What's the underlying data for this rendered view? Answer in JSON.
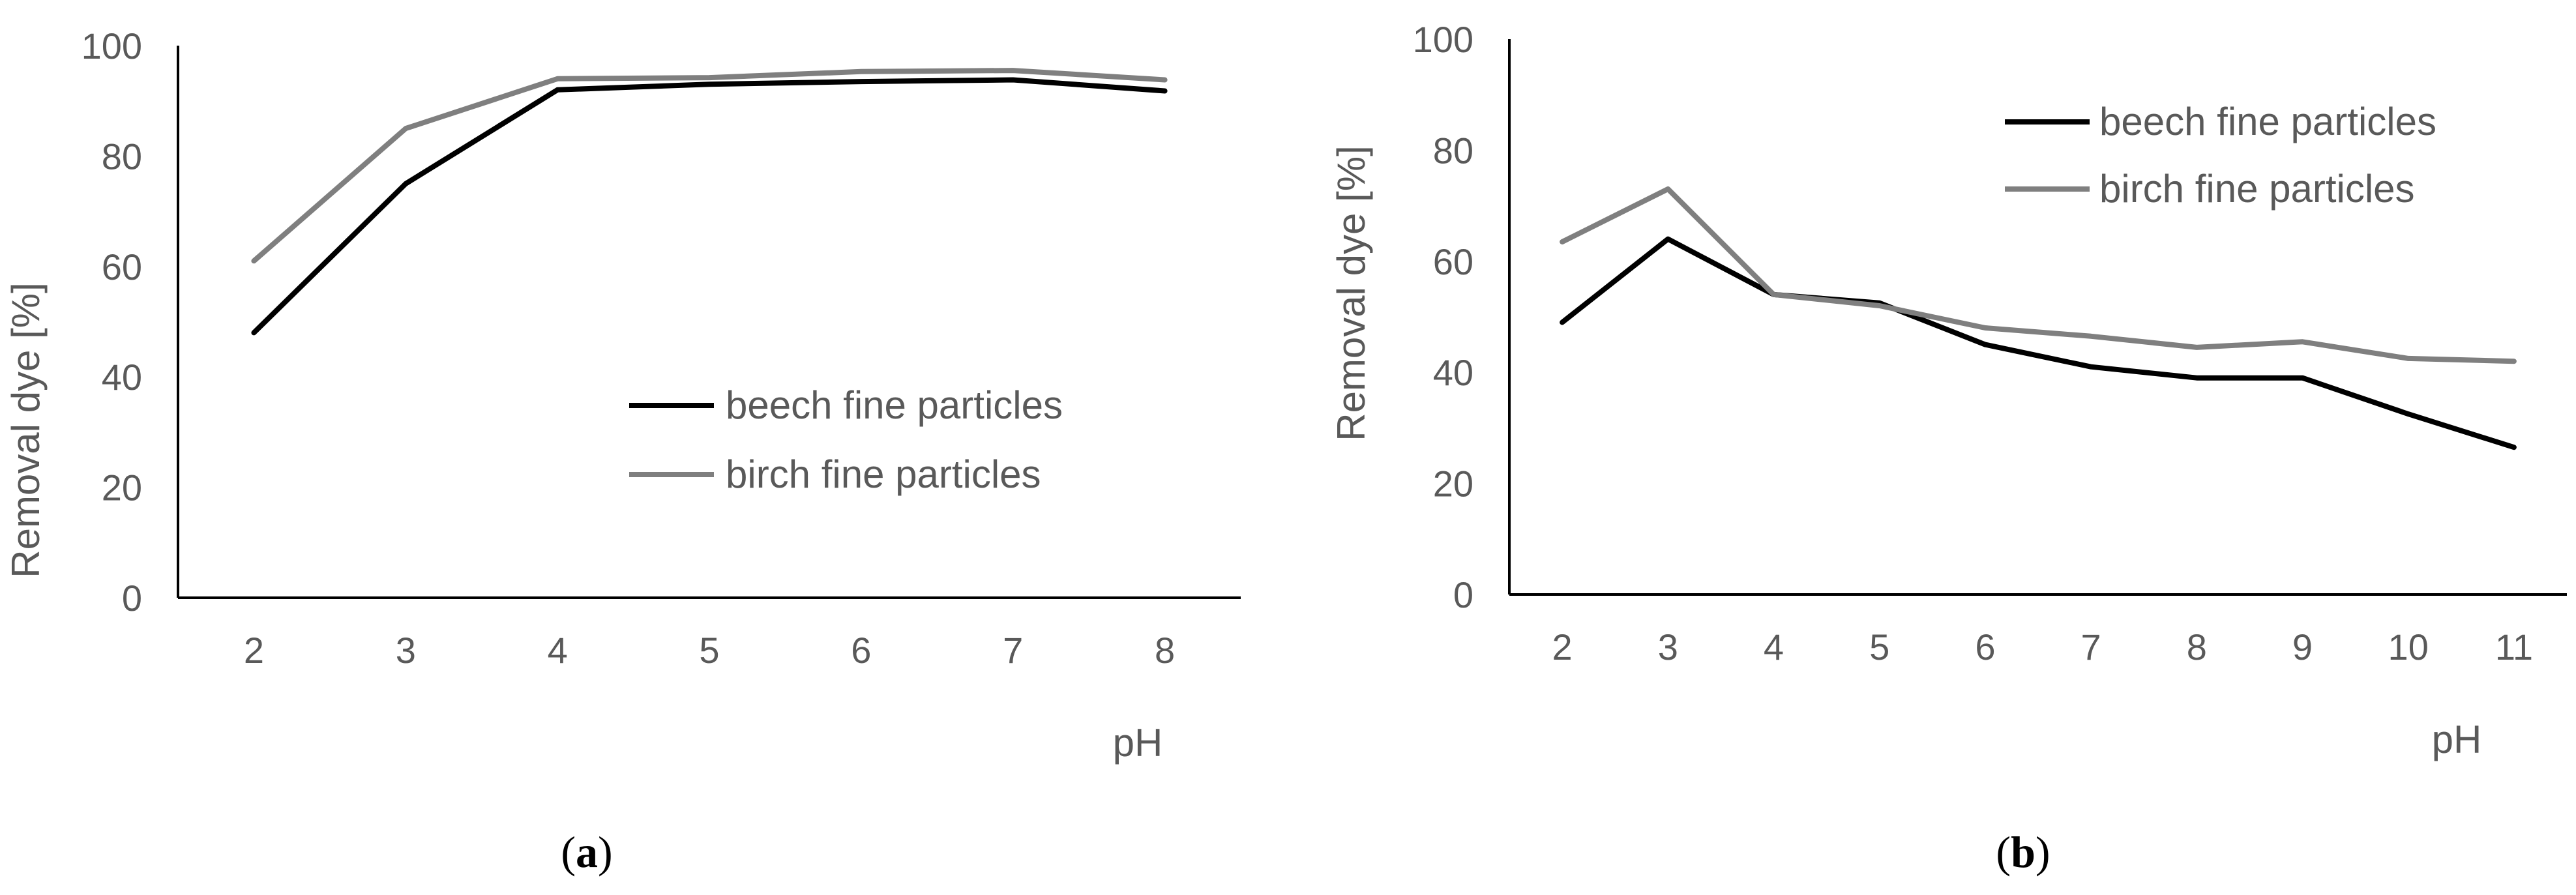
{
  "colors": {
    "beech": "#000000",
    "birch": "#7f7f7f",
    "axis": "#000000",
    "text": "#595959"
  },
  "chart_data": [
    {
      "type": "line",
      "panel_label": "a",
      "xlabel": "pH",
      "ylabel": "Removal dye [%]",
      "categories": [
        "2",
        "3",
        "4",
        "5",
        "6",
        "7",
        "8"
      ],
      "yticks": [
        "0",
        "20",
        "40",
        "60",
        "80",
        "100"
      ],
      "ylim": [
        0,
        100
      ],
      "grid": false,
      "legend_position": "center-right",
      "series": [
        {
          "name": "beech fine particles",
          "color": "#000000",
          "values": [
            48,
            75,
            92,
            93,
            93.5,
            93.8,
            91.8
          ]
        },
        {
          "name": "birch fine particles",
          "color": "#7f7f7f",
          "values": [
            61,
            85,
            94,
            94.2,
            95.3,
            95.5,
            93.8
          ]
        }
      ]
    },
    {
      "type": "line",
      "panel_label": "b",
      "xlabel": "pH",
      "ylabel": "Removal dye [%]",
      "categories": [
        "2",
        "3",
        "4",
        "5",
        "6",
        "7",
        "8",
        "9",
        "10",
        "11"
      ],
      "yticks": [
        "0",
        "20",
        "40",
        "60",
        "80",
        "100"
      ],
      "ylim": [
        0,
        100
      ],
      "grid": false,
      "legend_position": "top-right",
      "series": [
        {
          "name": "beech fine particles",
          "color": "#000000",
          "values": [
            49,
            64,
            54,
            52.5,
            45,
            41,
            39,
            39,
            32.5,
            26.5
          ]
        },
        {
          "name": "birch fine particles",
          "color": "#7f7f7f",
          "values": [
            63.5,
            73,
            54,
            52,
            48,
            46.5,
            44.5,
            45.5,
            42.5,
            42
          ]
        }
      ]
    }
  ]
}
